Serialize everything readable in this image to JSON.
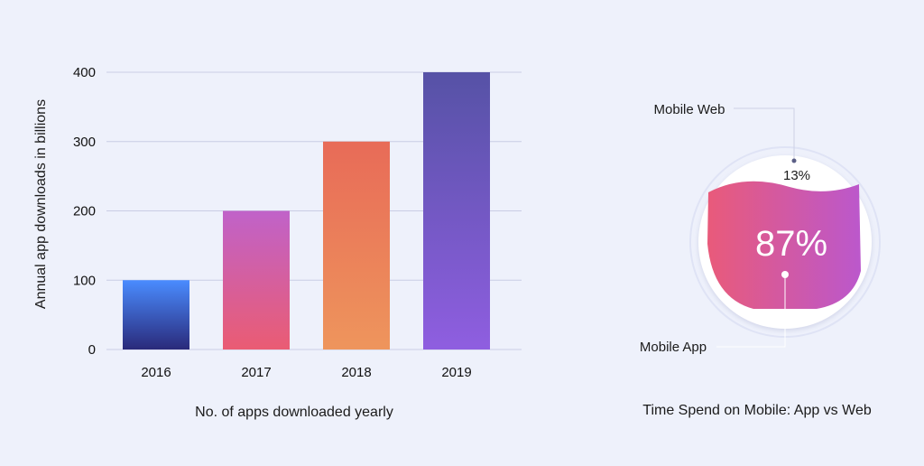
{
  "chart_data": [
    {
      "type": "bar",
      "categories": [
        "2016",
        "2017",
        "2018",
        "2019"
      ],
      "values": [
        100,
        200,
        300,
        400
      ],
      "xlabel": "No. of apps downloaded yearly",
      "ylabel": "Annual app downloads in billions",
      "yticks": [
        0,
        100,
        200,
        300,
        400
      ],
      "ylim": [
        0,
        400
      ],
      "grid": true,
      "colors": {
        "2016": [
          "#4a8cff",
          "#2a2a7a"
        ],
        "2017": [
          "#c062c9",
          "#ea5c73"
        ],
        "2018": [
          "#e86b58",
          "#ee955c"
        ],
        "2019": [
          "#5652a6",
          "#8f5ee0"
        ]
      }
    },
    {
      "type": "pie",
      "title": "Time Spend on Mobile: App vs Web",
      "slices": [
        {
          "label": "Mobile App",
          "value": 87,
          "display": "87%"
        },
        {
          "label": "Mobile Web",
          "value": 13,
          "display": "13%"
        }
      ],
      "colors": {
        "app_start": "#e95a7a",
        "app_end": "#bb58cc",
        "web": "#ffffff",
        "ring": "#ffffff"
      }
    }
  ]
}
